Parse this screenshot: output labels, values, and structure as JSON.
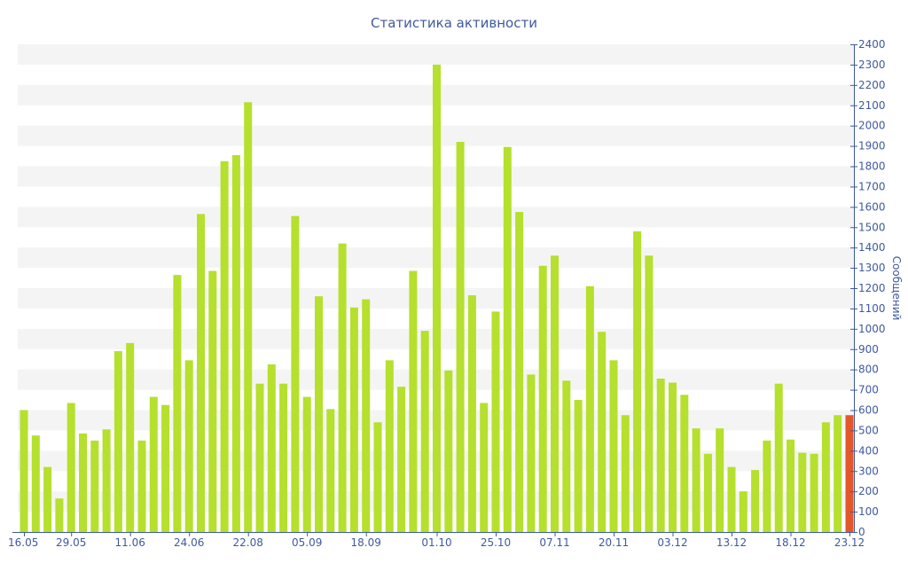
{
  "chart_data": {
    "type": "bar",
    "title": "Статистика активности",
    "xlabel": "",
    "ylabel": "Сообщений",
    "ylim": [
      0,
      2400
    ],
    "y_ticks": [
      0,
      100,
      200,
      300,
      400,
      500,
      600,
      700,
      800,
      900,
      1000,
      1100,
      1200,
      1300,
      1400,
      1500,
      1600,
      1700,
      1800,
      1900,
      2000,
      2100,
      2200,
      2300,
      2400
    ],
    "y_axis_position": "right",
    "grid": "alternating horizontal bands",
    "legend": "none",
    "x_tick_labels": [
      "16.05",
      "29.05",
      "11.06",
      "24.06",
      "22.08",
      "05.09",
      "18.09",
      "01.10",
      "25.10",
      "07.11",
      "20.11",
      "03.12",
      "13.12",
      "18.12",
      "23.12"
    ],
    "x_tick_indices": [
      0,
      4,
      9,
      14,
      19,
      24,
      29,
      35,
      40,
      45,
      50,
      55,
      60,
      65,
      70
    ],
    "values": [
      600,
      475,
      320,
      165,
      635,
      485,
      450,
      505,
      890,
      930,
      450,
      665,
      625,
      1265,
      845,
      1565,
      1285,
      1825,
      1855,
      2115,
      730,
      825,
      730,
      1555,
      665,
      1160,
      605,
      1420,
      1105,
      1145,
      540,
      845,
      715,
      1285,
      990,
      2300,
      795,
      1920,
      1165,
      635,
      1085,
      1895,
      1575,
      775,
      1310,
      1360,
      745,
      650,
      1210,
      985,
      845,
      575,
      1480,
      1360,
      755,
      735,
      675,
      510,
      385,
      510,
      320,
      200,
      305,
      450,
      730,
      455,
      390,
      385,
      540,
      575,
      575
    ],
    "highlight_index": 70,
    "colors": {
      "bar": "#b5e02d",
      "highlight": "#e2582b",
      "band": "#f4f4f4",
      "axis": "#3e5a9c",
      "text": "#3e5a9c"
    }
  }
}
